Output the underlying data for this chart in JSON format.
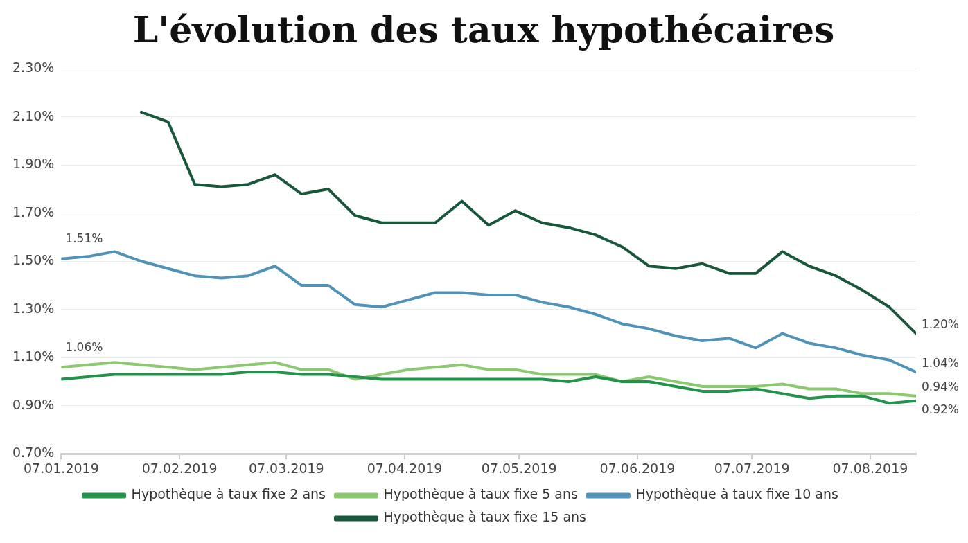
{
  "chart_data": {
    "type": "line",
    "title": "L'évolution des taux hypothécaires",
    "x": [
      "2019-01-07",
      "2019-01-14",
      "2019-01-21",
      "2019-01-28",
      "2019-02-04",
      "2019-02-11",
      "2019-02-18",
      "2019-02-25",
      "2019-03-04",
      "2019-03-11",
      "2019-03-18",
      "2019-03-25",
      "2019-04-01",
      "2019-04-08",
      "2019-04-15",
      "2019-04-22",
      "2019-04-29",
      "2019-05-06",
      "2019-05-13",
      "2019-05-20",
      "2019-05-27",
      "2019-06-03",
      "2019-06-10",
      "2019-06-17",
      "2019-06-24",
      "2019-07-01",
      "2019-07-08",
      "2019-07-15",
      "2019-07-22",
      "2019-07-29",
      "2019-08-05",
      "2019-08-12",
      "2019-08-19"
    ],
    "xlim": [
      "2019-01-07",
      "2019-08-19"
    ],
    "xticks": [
      {
        "value": "2019-01-07",
        "label": "07.01.2019"
      },
      {
        "value": "2019-02-07",
        "label": "07.02.2019"
      },
      {
        "value": "2019-03-07",
        "label": "07.03.2019"
      },
      {
        "value": "2019-04-07",
        "label": "07.04.2019"
      },
      {
        "value": "2019-05-07",
        "label": "07.05.2019"
      },
      {
        "value": "2019-06-07",
        "label": "07.06.2019"
      },
      {
        "value": "2019-07-07",
        "label": "07.07.2019"
      },
      {
        "value": "2019-08-07",
        "label": "07.08.2019"
      }
    ],
    "ylim": [
      0.7,
      2.3
    ],
    "yticks": [
      {
        "value": 0.7,
        "label": "0.70%"
      },
      {
        "value": 0.9,
        "label": "0.90%"
      },
      {
        "value": 1.1,
        "label": "1.10%"
      },
      {
        "value": 1.3,
        "label": "1.30%"
      },
      {
        "value": 1.5,
        "label": "1.50%"
      },
      {
        "value": 1.7,
        "label": "1.70%"
      },
      {
        "value": 1.9,
        "label": "1.90%"
      },
      {
        "value": 2.1,
        "label": "2.10%"
      },
      {
        "value": 2.3,
        "label": "2.30%"
      }
    ],
    "grid": "y",
    "legend": "bottom",
    "marker": "none",
    "line_style": "solid",
    "series": [
      {
        "name": "Hypothèque à taux fixe 2 ans",
        "color": "#23924a",
        "values": [
          1.01,
          1.02,
          1.03,
          1.03,
          1.03,
          1.03,
          1.03,
          1.04,
          1.04,
          1.03,
          1.03,
          1.02,
          1.01,
          1.01,
          1.01,
          1.01,
          1.01,
          1.01,
          1.01,
          1.0,
          1.02,
          1.0,
          1.0,
          0.98,
          0.96,
          0.96,
          0.97,
          0.95,
          0.93,
          0.94,
          0.94,
          0.91,
          0.92
        ],
        "value_labels": [
          null,
          null,
          null,
          null,
          null,
          null,
          null,
          null,
          null,
          null,
          null,
          null,
          null,
          null,
          null,
          null,
          null,
          null,
          null,
          null,
          null,
          null,
          null,
          null,
          null,
          null,
          null,
          null,
          null,
          null,
          null,
          null,
          "0.92%"
        ]
      },
      {
        "name": "Hypothèque à taux fixe 5 ans",
        "color": "#8cc870",
        "values": [
          1.06,
          1.07,
          1.08,
          1.07,
          1.06,
          1.05,
          1.06,
          1.07,
          1.08,
          1.05,
          1.05,
          1.01,
          1.03,
          1.05,
          1.06,
          1.07,
          1.05,
          1.05,
          1.03,
          1.03,
          1.03,
          1.0,
          1.02,
          1.0,
          0.98,
          0.98,
          0.98,
          0.99,
          0.97,
          0.97,
          0.95,
          0.95,
          0.94
        ],
        "value_labels": [
          "1.06%",
          null,
          null,
          null,
          null,
          null,
          null,
          null,
          null,
          null,
          null,
          null,
          null,
          null,
          null,
          null,
          null,
          null,
          null,
          null,
          null,
          null,
          null,
          null,
          null,
          null,
          null,
          null,
          null,
          null,
          null,
          null,
          "0.94%"
        ]
      },
      {
        "name": "Hypothèque à taux fixe 10 ans",
        "color": "#5193b8",
        "values": [
          1.51,
          1.52,
          1.54,
          1.5,
          1.47,
          1.44,
          1.43,
          1.44,
          1.48,
          1.4,
          1.4,
          1.32,
          1.31,
          1.34,
          1.37,
          1.37,
          1.36,
          1.36,
          1.33,
          1.31,
          1.28,
          1.24,
          1.22,
          1.19,
          1.17,
          1.18,
          1.14,
          1.2,
          1.16,
          1.14,
          1.11,
          1.09,
          1.04
        ],
        "value_labels": [
          "1.51%",
          null,
          null,
          null,
          null,
          null,
          null,
          null,
          null,
          null,
          null,
          null,
          null,
          null,
          null,
          null,
          null,
          null,
          null,
          null,
          null,
          null,
          null,
          null,
          null,
          null,
          null,
          null,
          null,
          null,
          null,
          null,
          "1.04%"
        ]
      },
      {
        "name": "Hypothèque à taux fixe 15 ans",
        "color": "#17583a",
        "values": [
          null,
          null,
          null,
          2.12,
          2.08,
          1.82,
          1.81,
          1.82,
          1.86,
          1.78,
          1.8,
          1.69,
          1.66,
          1.66,
          1.66,
          1.75,
          1.65,
          1.71,
          1.66,
          1.64,
          1.61,
          1.56,
          1.48,
          1.47,
          1.49,
          1.45,
          1.45,
          1.54,
          1.48,
          1.44,
          1.38,
          1.31,
          1.2
        ],
        "value_labels": [
          null,
          null,
          null,
          null,
          null,
          null,
          null,
          null,
          null,
          null,
          null,
          null,
          null,
          null,
          null,
          null,
          null,
          null,
          null,
          null,
          null,
          null,
          null,
          null,
          null,
          null,
          null,
          null,
          null,
          null,
          null,
          null,
          "1.20%"
        ]
      }
    ]
  }
}
